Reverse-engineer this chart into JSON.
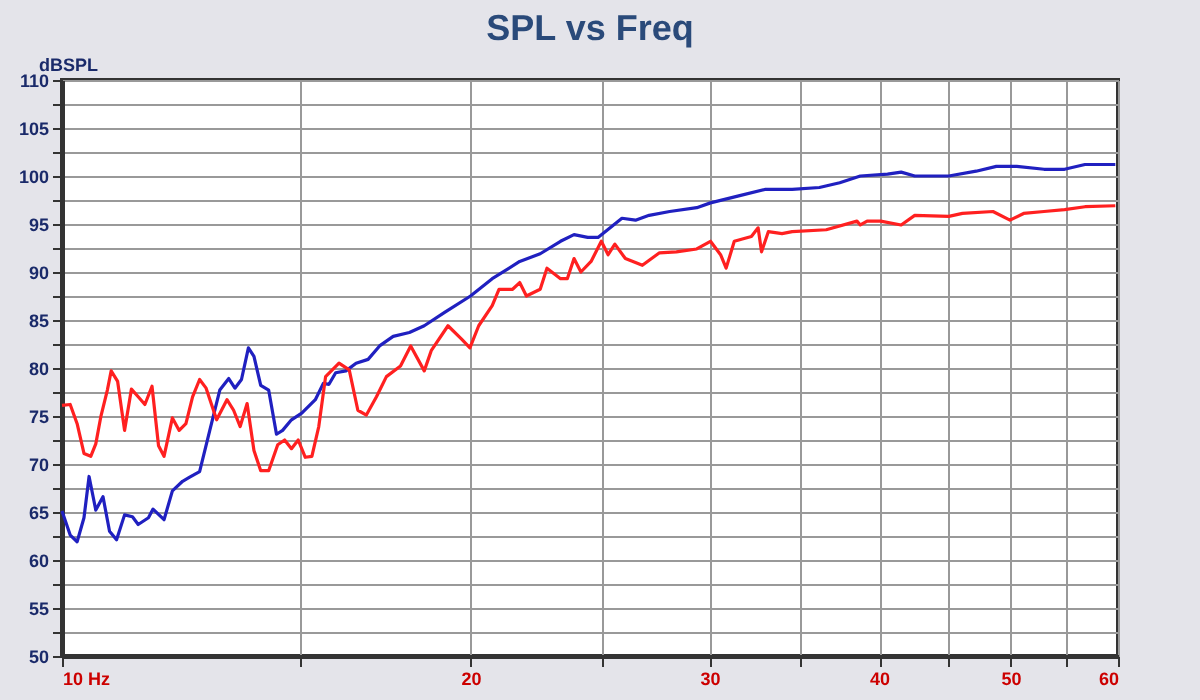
{
  "chart_data": {
    "type": "line",
    "title": "SPL vs Freq",
    "ylabel": "dBSPL",
    "log": "x",
    "grid": true,
    "legend": false,
    "marker": "none",
    "line_style": "solid",
    "xlim": [
      10,
      60
    ],
    "ylim": [
      50,
      110
    ],
    "xticks": [
      {
        "value": 10,
        "label": "10 Hz"
      },
      {
        "value": 15,
        "label": null
      },
      20,
      {
        "value": 25,
        "label": null
      },
      30,
      {
        "value": 35,
        "label": null
      },
      40,
      {
        "value": 45,
        "label": null
      },
      50,
      {
        "value": 55,
        "label": null
      },
      60
    ],
    "yticks": [
      50,
      {
        "value": 52.5,
        "label": null
      },
      55,
      {
        "value": 57.5,
        "label": null
      },
      60,
      {
        "value": 62.5,
        "label": null
      },
      65,
      {
        "value": 67.5,
        "label": null
      },
      70,
      {
        "value": 72.5,
        "label": null
      },
      75,
      {
        "value": 77.5,
        "label": null
      },
      80,
      {
        "value": 82.5,
        "label": null
      },
      85,
      {
        "value": 87.5,
        "label": null
      },
      90,
      {
        "value": 92.5,
        "label": null
      },
      95,
      {
        "value": 97.5,
        "label": null
      },
      100,
      {
        "value": 102.5,
        "label": null
      },
      105,
      {
        "value": 107.5,
        "label": null
      },
      110
    ],
    "series": [
      {
        "color": "#2020c0",
        "x": [
          10.0,
          10.14,
          10.26,
          10.38,
          10.47,
          10.59,
          10.72,
          10.84,
          10.97,
          11.12,
          11.27,
          11.38,
          11.58,
          11.67,
          11.89,
          12.06,
          12.27,
          12.41,
          12.63,
          12.85,
          13.07,
          13.27,
          13.41,
          13.56,
          13.72,
          13.85,
          14.01,
          14.2,
          14.39,
          14.54,
          14.76,
          15.02,
          15.37,
          15.58,
          15.73,
          15.91,
          16.19,
          16.47,
          16.81,
          17.14,
          17.54,
          18.03,
          18.49,
          19.14,
          20.0,
          20.75,
          21.74,
          22.51,
          23.3,
          23.84,
          24.4,
          24.83,
          25.86,
          26.46,
          27.08,
          28.04,
          29.36,
          30.05,
          31.47,
          32.96,
          34.52,
          36.15,
          37.42,
          38.75,
          40.58,
          41.53,
          42.5,
          45.03,
          47.16,
          48.81,
          50.53,
          52.92,
          54.8,
          56.73,
          59.73
        ],
        "values": [
          65.1,
          62.6,
          61.9,
          64.4,
          68.7,
          65.2,
          66.6,
          63.0,
          62.1,
          64.7,
          64.5,
          63.7,
          64.4,
          65.3,
          64.2,
          67.2,
          68.2,
          68.6,
          69.2,
          73.5,
          77.7,
          78.9,
          77.9,
          78.8,
          82.1,
          81.2,
          78.2,
          77.7,
          73.1,
          73.5,
          74.6,
          75.3,
          76.7,
          78.4,
          78.3,
          79.5,
          79.7,
          80.5,
          80.9,
          82.3,
          83.3,
          83.7,
          84.4,
          85.8,
          87.5,
          89.3,
          91.1,
          91.9,
          93.2,
          93.9,
          93.6,
          93.6,
          95.6,
          95.4,
          95.9,
          96.3,
          96.7,
          97.2,
          97.9,
          98.6,
          98.6,
          98.8,
          99.3,
          100.0,
          100.2,
          100.4,
          100.0,
          100.0,
          100.5,
          101.0,
          101.0,
          100.7,
          100.7,
          101.2,
          101.2
        ]
      },
      {
        "color": "#ff2020",
        "x": [
          10.0,
          10.14,
          10.26,
          10.38,
          10.5,
          10.59,
          10.68,
          10.8,
          10.87,
          10.99,
          11.12,
          11.25,
          11.38,
          11.51,
          11.65,
          11.78,
          11.89,
          12.06,
          12.2,
          12.34,
          12.48,
          12.63,
          12.77,
          13.0,
          13.23,
          13.38,
          13.53,
          13.69,
          13.85,
          14.01,
          14.2,
          14.42,
          14.59,
          14.76,
          14.93,
          15.11,
          15.28,
          15.46,
          15.64,
          16.0,
          16.28,
          16.52,
          16.76,
          17.05,
          17.34,
          17.76,
          18.07,
          18.49,
          18.71,
          19.25,
          19.7,
          19.98,
          20.28,
          20.75,
          20.99,
          21.48,
          21.74,
          21.99,
          22.51,
          22.77,
          23.3,
          23.57,
          23.84,
          24.12,
          24.54,
          24.97,
          25.26,
          25.55,
          26.01,
          26.77,
          27.56,
          28.36,
          29.36,
          30.05,
          30.57,
          30.86,
          31.29,
          32.21,
          32.58,
          32.77,
          33.15,
          33.93,
          34.52,
          36.57,
          38.53,
          38.75,
          39.2,
          40.11,
          41.53,
          42.5,
          45.03,
          46.08,
          48.53,
          49.95,
          51.12,
          52.92,
          54.8,
          56.73,
          59.73
        ],
        "values": [
          76.1,
          76.2,
          74.2,
          71.1,
          70.8,
          72.1,
          74.9,
          77.7,
          79.7,
          78.6,
          73.5,
          77.8,
          77.0,
          76.2,
          78.1,
          71.9,
          70.8,
          74.8,
          73.5,
          74.2,
          77.0,
          78.8,
          77.9,
          74.6,
          76.7,
          75.6,
          73.9,
          76.3,
          71.4,
          69.3,
          69.3,
          72.0,
          72.5,
          71.6,
          72.5,
          70.7,
          70.8,
          73.9,
          79.1,
          80.5,
          79.8,
          75.6,
          75.1,
          77.0,
          79.1,
          80.2,
          82.3,
          79.7,
          81.8,
          84.4,
          83.0,
          82.1,
          84.4,
          86.5,
          88.2,
          88.2,
          88.9,
          87.5,
          88.2,
          90.4,
          89.3,
          89.3,
          91.4,
          90.0,
          91.1,
          93.2,
          91.8,
          92.9,
          91.4,
          90.7,
          92.0,
          92.1,
          92.4,
          93.2,
          91.8,
          90.4,
          93.2,
          93.7,
          94.6,
          92.1,
          94.2,
          94.0,
          94.2,
          94.4,
          95.3,
          94.9,
          95.3,
          95.3,
          94.9,
          95.9,
          95.8,
          96.1,
          96.3,
          95.4,
          96.1,
          96.3,
          96.5,
          96.8,
          96.9
        ]
      }
    ]
  }
}
